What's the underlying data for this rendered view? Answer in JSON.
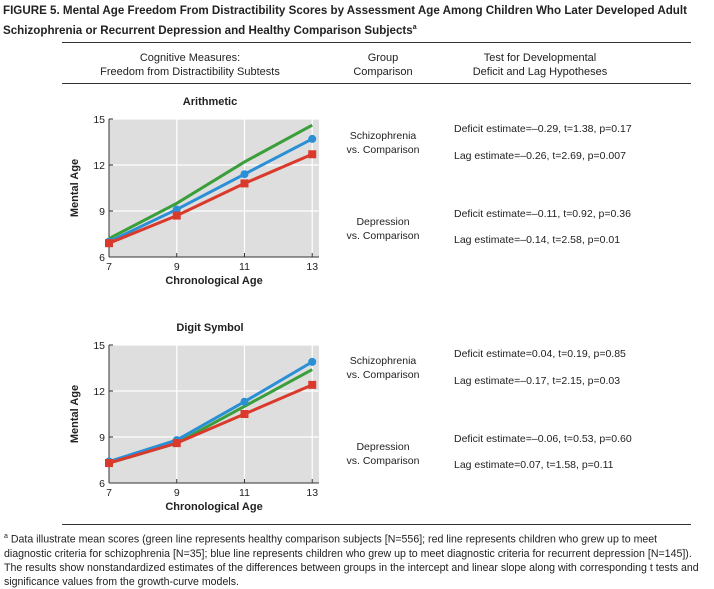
{
  "figure": {
    "title": "FIGURE 5. Mental Age Freedom From Distractibility Scores by Assessment Age Among Children Who Later Developed Adult Schizophrenia or Recurrent Depression and Healthy Comparison Subjects",
    "title_note_marker": "a"
  },
  "headers": {
    "col1_line1": "Cognitive Measures:",
    "col1_line2": "Freedom from Distractibility Subtests",
    "col2_line1": "Group",
    "col2_line2": "Comparison",
    "col3_line1": "Test for Developmental",
    "col3_line2": "Deficit and Lag Hypotheses"
  },
  "chart_data": [
    {
      "type": "line",
      "title": "Arithmetic",
      "xlabel": "Chronological Age",
      "ylabel": "Mental Age",
      "x": [
        7,
        9,
        11,
        13
      ],
      "xlim": [
        7,
        13.2
      ],
      "ylim": [
        6,
        15
      ],
      "xticks": [
        "7",
        "9",
        "11",
        "13"
      ],
      "yticks": [
        "6",
        "9",
        "12",
        "15"
      ],
      "grid": true,
      "series": [
        {
          "color": "#3a9e3a",
          "marker": "none",
          "values": [
            7.2,
            9.5,
            12.2,
            14.6
          ]
        },
        {
          "color": "#2b8fd6",
          "marker": "circle",
          "values": [
            7.0,
            9.1,
            11.4,
            13.7
          ]
        },
        {
          "color": "#d93a2b",
          "marker": "square",
          "values": [
            6.9,
            8.7,
            10.8,
            12.7
          ]
        }
      ],
      "groups": [
        {
          "line1": "Schizophrenia",
          "line2": "vs. Comparison",
          "deficit": "Deficit estimate=–0.29, t=1.38, p=0.17",
          "lag": "Lag estimate=–0.26, t=2.69, p=0.007"
        },
        {
          "line1": "Depression",
          "line2": "vs. Comparison",
          "deficit": "Deficit estimate=–0.11, t=0.92, p=0.36",
          "lag": "Lag estimate=–0.14, t=2.58, p=0.01"
        }
      ]
    },
    {
      "type": "line",
      "title": "Digit Symbol",
      "xlabel": "Chronological Age",
      "ylabel": "Mental Age",
      "x": [
        7,
        9,
        11,
        13
      ],
      "xlim": [
        7,
        13.2
      ],
      "ylim": [
        6,
        15
      ],
      "xticks": [
        "7",
        "9",
        "11",
        "13"
      ],
      "yticks": [
        "6",
        "9",
        "12",
        "15"
      ],
      "grid": true,
      "series": [
        {
          "color": "#3a9e3a",
          "marker": "none",
          "values": [
            7.3,
            8.6,
            11.0,
            13.4
          ]
        },
        {
          "color": "#2b8fd6",
          "marker": "circle",
          "values": [
            7.4,
            8.8,
            11.3,
            13.9
          ]
        },
        {
          "color": "#d93a2b",
          "marker": "square",
          "values": [
            7.3,
            8.6,
            10.5,
            12.4
          ]
        }
      ],
      "groups": [
        {
          "line1": "Schizophrenia",
          "line2": "vs. Comparison",
          "deficit": "Deficit estimate=0.04, t=0.19, p=0.85",
          "lag": "Lag estimate=–0.17, t=2.15, p=0.03"
        },
        {
          "line1": "Depression",
          "line2": "vs. Comparison",
          "deficit": "Deficit estimate=–0.06, t=0.53, p=0.60",
          "lag": "Lag estimate=0.07, t=1.58, p=0.11"
        }
      ]
    }
  ],
  "footnote": {
    "marker": "a",
    "text": "Data illustrate mean scores (green line represents healthy comparison subjects [N=556]; red line represents children who grew up to meet diagnostic criteria for schizophrenia [N=35]; blue line represents children who grew up to meet diagnostic criteria for recurrent depression [N=145]). The results show nonstandardized estimates of the differences between groups in the intercept and linear slope along with corresponding t tests and significance values from the growth-curve models."
  }
}
